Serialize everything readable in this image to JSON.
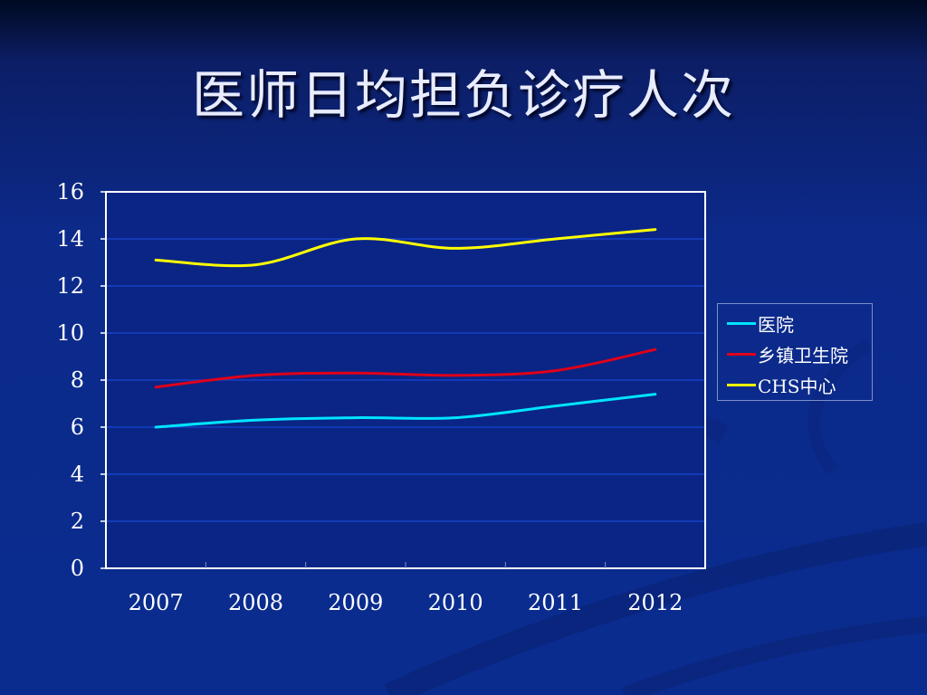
{
  "slide": {
    "title": "医师日均担负诊疗人次"
  },
  "colors": {
    "background": "#0b2a8c",
    "plot_area": "#0a2585",
    "plot_border": "#ffffff",
    "gridline": "#1540c8",
    "axis_text": "#ffffff"
  },
  "chart_data": {
    "type": "line",
    "title": "",
    "xlabel": "",
    "ylabel": "",
    "x": [
      "2007",
      "2008",
      "2009",
      "2010",
      "2011",
      "2012"
    ],
    "ylim": [
      0,
      16
    ],
    "yticks": [
      0,
      2,
      4,
      6,
      8,
      10,
      12,
      14,
      16
    ],
    "grid": true,
    "smooth": true,
    "legend_position": "right",
    "series": [
      {
        "name": "医院",
        "color": "#00e5ff",
        "values": [
          6.0,
          6.3,
          6.4,
          6.4,
          6.9,
          7.4
        ]
      },
      {
        "name": "乡镇卫生院",
        "color": "#e0001a",
        "values": [
          7.7,
          8.2,
          8.3,
          8.2,
          8.4,
          9.3
        ]
      },
      {
        "name": "CHS中心",
        "color": "#ffff00",
        "values": [
          13.1,
          12.9,
          14.0,
          13.6,
          14.0,
          14.4
        ]
      }
    ]
  }
}
